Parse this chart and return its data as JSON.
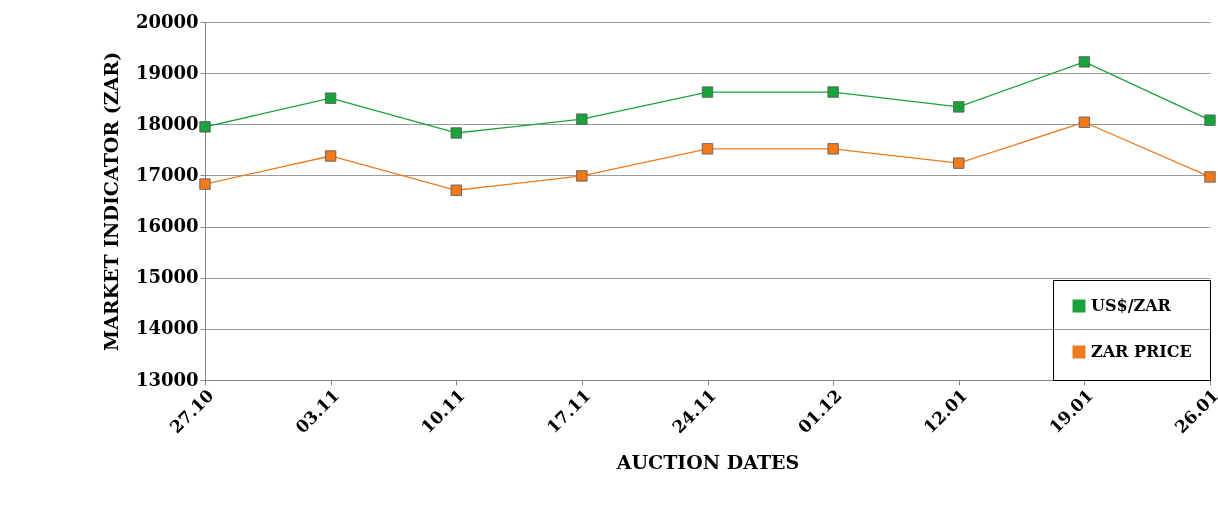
{
  "chart_data": {
    "type": "line",
    "xlabel": "AUCTION DATES",
    "ylabel": "MARKET INDICATOR (ZAR)",
    "categories": [
      "27.10",
      "03.11",
      "10.11",
      "17.11",
      "24.11",
      "01.12",
      "12.01",
      "19.01",
      "26.01"
    ],
    "series": [
      {
        "name": "US$/ZAR",
        "color": "#1aa33c",
        "values": [
          17950,
          18510,
          17830,
          18100,
          18630,
          18630,
          18340,
          19220,
          18080
        ]
      },
      {
        "name": "ZAR PRICE",
        "color": "#f07a1c",
        "values": [
          16830,
          17380,
          16710,
          16990,
          17520,
          17520,
          17240,
          18040,
          16970
        ]
      }
    ],
    "ylim": [
      13000,
      20000
    ],
    "yticks": [
      13000,
      14000,
      15000,
      16000,
      17000,
      18000,
      19000,
      20000
    ],
    "grid": "y",
    "legend": "bottom right",
    "marker": "square",
    "line_style": "solid"
  }
}
